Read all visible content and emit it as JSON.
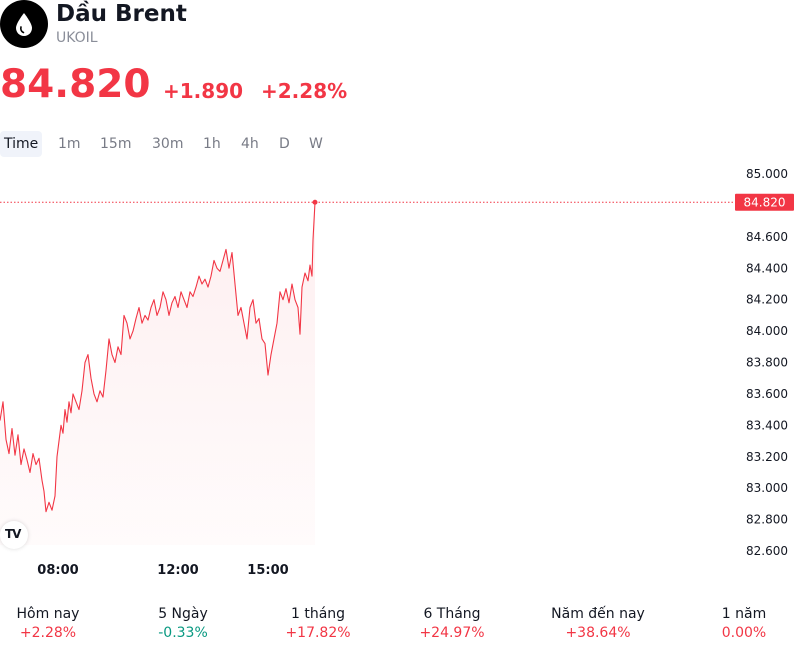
{
  "header": {
    "name": "Dầu Brent",
    "symbol": "UKOIL",
    "logo_icon": "oil-drop-icon"
  },
  "quote": {
    "price": "84.820",
    "change": "+1.890",
    "change_percent": "+2.28%",
    "color": "#f23645"
  },
  "tabs": [
    {
      "label": "Time",
      "active": true
    },
    {
      "label": "1m"
    },
    {
      "label": "15m"
    },
    {
      "label": "30m"
    },
    {
      "label": "1h"
    },
    {
      "label": "4h"
    },
    {
      "label": "D"
    },
    {
      "label": "W"
    }
  ],
  "chart_data": {
    "type": "area",
    "y_ticks": [
      "85.000",
      "84.800",
      "84.600",
      "84.400",
      "84.200",
      "84.000",
      "83.800",
      "83.600",
      "83.400",
      "83.200",
      "83.000",
      "82.800",
      "82.600"
    ],
    "x_ticks": [
      "08:00",
      "12:00",
      "15:00"
    ],
    "last_price_label": "84.820",
    "line_color": "#f23645",
    "ylim": [
      82.6,
      85.0
    ],
    "series": [
      {
        "points": [
          [
            0,
            83.43
          ],
          [
            3,
            83.55
          ],
          [
            6,
            83.31
          ],
          [
            9,
            83.22
          ],
          [
            12,
            83.38
          ],
          [
            15,
            83.21
          ],
          [
            18,
            83.34
          ],
          [
            21,
            83.15
          ],
          [
            24,
            83.25
          ],
          [
            27,
            83.18
          ],
          [
            30,
            83.1
          ],
          [
            33,
            83.22
          ],
          [
            36,
            83.15
          ],
          [
            39,
            83.19
          ],
          [
            42,
            83.05
          ],
          [
            44,
            82.98
          ],
          [
            46,
            82.85
          ],
          [
            49,
            82.91
          ],
          [
            52,
            82.86
          ],
          [
            55,
            82.95
          ],
          [
            57,
            83.2
          ],
          [
            59,
            83.3
          ],
          [
            61,
            83.4
          ],
          [
            63,
            83.35
          ],
          [
            65,
            83.5
          ],
          [
            67,
            83.42
          ],
          [
            69,
            83.55
          ],
          [
            71,
            83.48
          ],
          [
            73,
            83.6
          ],
          [
            76,
            83.55
          ],
          [
            79,
            83.5
          ],
          [
            82,
            83.62
          ],
          [
            85,
            83.8
          ],
          [
            88,
            83.85
          ],
          [
            91,
            83.7
          ],
          [
            94,
            83.6
          ],
          [
            97,
            83.55
          ],
          [
            100,
            83.62
          ],
          [
            103,
            83.58
          ],
          [
            106,
            83.75
          ],
          [
            109,
            83.95
          ],
          [
            112,
            83.85
          ],
          [
            115,
            83.8
          ],
          [
            118,
            83.9
          ],
          [
            121,
            83.85
          ],
          [
            124,
            84.1
          ],
          [
            127,
            84.05
          ],
          [
            130,
            83.95
          ],
          [
            133,
            84.0
          ],
          [
            136,
            84.08
          ],
          [
            139,
            84.15
          ],
          [
            142,
            84.05
          ],
          [
            145,
            84.1
          ],
          [
            148,
            84.07
          ],
          [
            151,
            84.15
          ],
          [
            154,
            84.2
          ],
          [
            157,
            84.1
          ],
          [
            160,
            84.15
          ],
          [
            163,
            84.25
          ],
          [
            166,
            84.2
          ],
          [
            169,
            84.1
          ],
          [
            172,
            84.18
          ],
          [
            175,
            84.22
          ],
          [
            178,
            84.15
          ],
          [
            181,
            84.25
          ],
          [
            184,
            84.2
          ],
          [
            187,
            84.15
          ],
          [
            190,
            84.25
          ],
          [
            193,
            84.22
          ],
          [
            196,
            84.28
          ],
          [
            199,
            84.35
          ],
          [
            202,
            84.3
          ],
          [
            205,
            84.33
          ],
          [
            208,
            84.28
          ],
          [
            211,
            84.35
          ],
          [
            214,
            84.45
          ],
          [
            217,
            84.4
          ],
          [
            220,
            84.38
          ],
          [
            223,
            84.45
          ],
          [
            226,
            84.52
          ],
          [
            229,
            84.4
          ],
          [
            232,
            84.5
          ],
          [
            235,
            84.3
          ],
          [
            238,
            84.1
          ],
          [
            241,
            84.15
          ],
          [
            244,
            84.05
          ],
          [
            247,
            83.95
          ],
          [
            250,
            84.15
          ],
          [
            253,
            84.2
          ],
          [
            256,
            84.05
          ],
          [
            259,
            84.08
          ],
          [
            262,
            83.95
          ],
          [
            265,
            83.92
          ],
          [
            268,
            83.72
          ],
          [
            271,
            83.85
          ],
          [
            274,
            83.95
          ],
          [
            277,
            84.05
          ],
          [
            280,
            84.25
          ],
          [
            283,
            84.2
          ],
          [
            286,
            84.27
          ],
          [
            289,
            84.18
          ],
          [
            292,
            84.3
          ],
          [
            295,
            84.2
          ],
          [
            298,
            84.15
          ],
          [
            300,
            83.98
          ],
          [
            302,
            84.28
          ],
          [
            305,
            84.37
          ],
          [
            308,
            84.32
          ],
          [
            310,
            84.42
          ],
          [
            312,
            84.35
          ],
          [
            313,
            84.58
          ],
          [
            314,
            84.7
          ],
          [
            315,
            84.82
          ]
        ]
      }
    ]
  },
  "performance": [
    {
      "label": "Hôm nay",
      "value": "+2.28%",
      "dir": "up"
    },
    {
      "label": "5 Ngày",
      "value": "-0.33%",
      "dir": "down"
    },
    {
      "label": "1 tháng",
      "value": "+17.82%",
      "dir": "up"
    },
    {
      "label": "6 Tháng",
      "value": "+24.97%",
      "dir": "up"
    },
    {
      "label": "Năm đến nay",
      "value": "+38.64%",
      "dir": "up"
    },
    {
      "label": "1 năm",
      "value": "0.00%",
      "dir": "up"
    }
  ]
}
